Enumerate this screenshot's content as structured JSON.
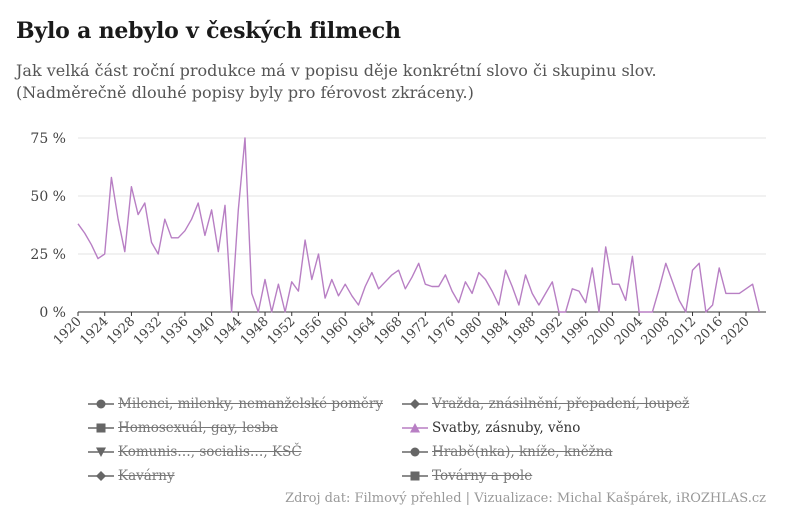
{
  "header": {
    "title": "Bylo a nebylo v českých filmech",
    "subtitle_line1": "Jak velká část roční produkce má v popisu děje konkrétní slovo či skupinu slov.",
    "subtitle_line2": "(Nadměrečně dlouhé popisy byly pro férovost zkráceny.)"
  },
  "chart_data": {
    "type": "line",
    "title": "",
    "xlabel": "",
    "ylabel": "",
    "ylim": [
      0,
      75
    ],
    "xlim": [
      1920,
      2023
    ],
    "y_ticks": [
      "0 %",
      "25 %",
      "50 %",
      "75 %"
    ],
    "y_tick_values": [
      0,
      25,
      50,
      75
    ],
    "x_ticks": [
      "1920",
      "1924",
      "1928",
      "1932",
      "1936",
      "1940",
      "1944",
      "1948",
      "1952",
      "1956",
      "1960",
      "1964",
      "1968",
      "1972",
      "1976",
      "1980",
      "1984",
      "1988",
      "1992",
      "1996",
      "2000",
      "2004",
      "2008",
      "2012",
      "2016",
      "2020"
    ],
    "x_tick_values": [
      1920,
      1924,
      1928,
      1932,
      1936,
      1940,
      1944,
      1948,
      1952,
      1956,
      1960,
      1964,
      1968,
      1972,
      1976,
      1980,
      1984,
      1988,
      1992,
      1996,
      2000,
      2004,
      2008,
      2012,
      2016,
      2020
    ],
    "grid": true,
    "series": [
      {
        "name": "Svatby, zásnuby, věno",
        "color": "#b87fc4",
        "x": [
          1920,
          1921,
          1922,
          1923,
          1924,
          1925,
          1926,
          1927,
          1928,
          1929,
          1930,
          1931,
          1932,
          1933,
          1934,
          1935,
          1936,
          1937,
          1938,
          1939,
          1940,
          1941,
          1942,
          1943,
          1944,
          1945,
          1946,
          1947,
          1948,
          1949,
          1950,
          1951,
          1952,
          1953,
          1954,
          1955,
          1956,
          1957,
          1958,
          1959,
          1960,
          1961,
          1962,
          1963,
          1964,
          1965,
          1966,
          1967,
          1968,
          1969,
          1970,
          1971,
          1972,
          1973,
          1974,
          1975,
          1976,
          1977,
          1978,
          1979,
          1980,
          1981,
          1982,
          1983,
          1984,
          1985,
          1986,
          1987,
          1988,
          1989,
          1990,
          1991,
          1992,
          1993,
          1994,
          1995,
          1996,
          1997,
          1998,
          1999,
          2000,
          2001,
          2002,
          2003,
          2004,
          2005,
          2006,
          2007,
          2008,
          2009,
          2010,
          2011,
          2012,
          2013,
          2014,
          2015,
          2016,
          2017,
          2018,
          2019,
          2020,
          2021,
          2022
        ],
        "values": [
          38,
          34,
          29,
          23,
          25,
          58,
          40,
          26,
          54,
          42,
          47,
          30,
          25,
          40,
          32,
          32,
          35,
          40,
          47,
          33,
          44,
          26,
          46,
          0,
          44,
          75,
          8,
          0,
          14,
          0,
          12,
          0,
          13,
          9,
          31,
          14,
          25,
          6,
          14,
          7,
          12,
          7,
          3,
          11,
          17,
          10,
          13,
          16,
          18,
          10,
          15,
          21,
          12,
          11,
          11,
          16,
          9,
          4,
          13,
          8,
          17,
          14,
          9,
          3,
          18,
          11,
          3,
          16,
          8,
          3,
          8,
          13,
          0,
          0,
          10,
          9,
          4,
          19,
          0,
          28,
          12,
          12,
          5,
          24,
          0,
          0,
          0,
          10,
          21,
          13,
          5,
          0,
          18,
          21,
          0,
          3,
          19,
          8,
          8,
          8,
          10,
          12,
          0
        ]
      }
    ]
  },
  "legend": {
    "items": [
      {
        "label": "Milenci, milenky, nemanželské poměry",
        "symbol": "circle",
        "enabled": false
      },
      {
        "label": "Vražda, znásilnění, přepadení, loupež",
        "symbol": "diamond",
        "enabled": false
      },
      {
        "label": "Homosexuál, gay, lesba",
        "symbol": "square",
        "enabled": false
      },
      {
        "label": "Svatby, zásnuby, věno",
        "symbol": "triangle",
        "enabled": true
      },
      {
        "label": "Komunis…, socialis…, KSČ",
        "symbol": "triangle-down",
        "enabled": false
      },
      {
        "label": "Hrabě(nka), kníže, kněžna",
        "symbol": "circle",
        "enabled": false
      },
      {
        "label": "Kavárny",
        "symbol": "diamond",
        "enabled": false
      },
      {
        "label": "Továrny a pole",
        "symbol": "square",
        "enabled": false
      }
    ],
    "active_color": "#b87fc4",
    "inactive_color": "#666666"
  },
  "footer": {
    "source": "Zdroj dat: Filmový přehled | Vizualizace: Michal Kašpárek, iROZHLAS.cz"
  }
}
